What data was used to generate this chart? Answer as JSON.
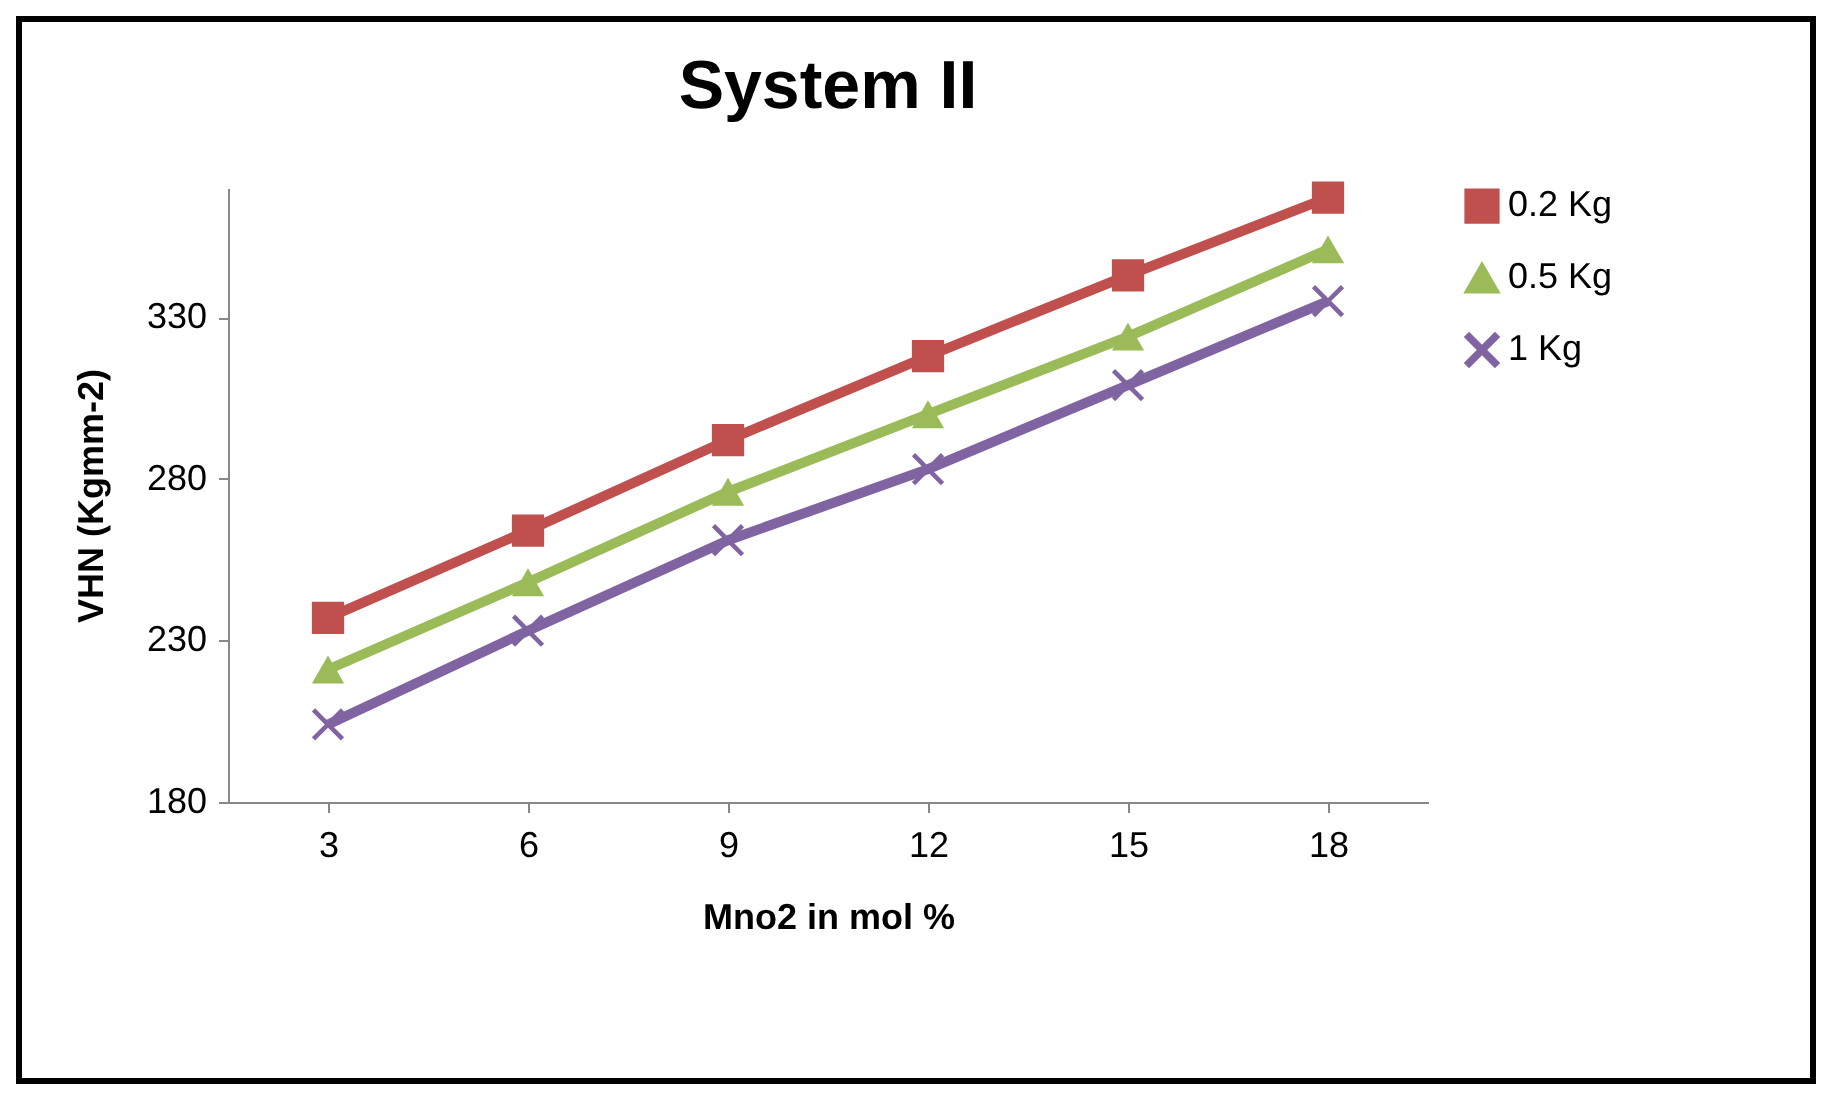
{
  "chart_data": {
    "type": "line",
    "title": "System II",
    "xlabel": "Mno2 in mol %",
    "ylabel": "VHN (Kgmm-2)",
    "categories": [
      "3",
      "6",
      "9",
      "12",
      "15",
      "18"
    ],
    "series": [
      {
        "name": "0.2 Kg",
        "color": "#c0504d",
        "marker": "square",
        "values": [
          237,
          264,
          292,
          318,
          343,
          367
        ]
      },
      {
        "name": "0.5 Kg",
        "color": "#9bbb59",
        "marker": "triangle",
        "values": [
          221,
          248,
          276,
          300,
          324,
          351
        ]
      },
      {
        "name": "1 Kg",
        "color": "#8064a2",
        "marker": "cross",
        "values": [
          204,
          233,
          261,
          283,
          309,
          335
        ]
      }
    ],
    "ylim": [
      180,
      370
    ],
    "yticks": [
      180,
      230,
      280,
      330
    ],
    "grid": false,
    "legend": "right"
  }
}
